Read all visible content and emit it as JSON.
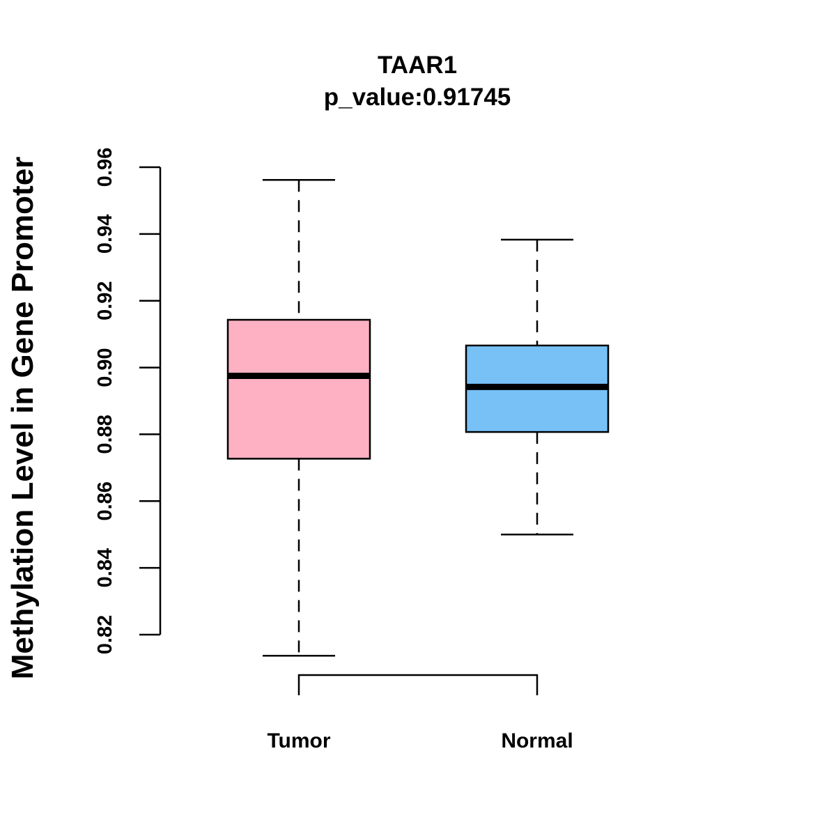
{
  "chart_data": {
    "type": "boxplot",
    "title": "TAAR1",
    "subtitle": "p_value:0.91745",
    "xlabel": "",
    "ylabel": "Methylation Level in Gene Promoter",
    "ylim": [
      0.82,
      0.96
    ],
    "yticks": [
      0.82,
      0.84,
      0.86,
      0.88,
      0.9,
      0.92,
      0.94,
      0.96
    ],
    "ytick_labels": [
      "0.82",
      "0.84",
      "0.86",
      "0.88",
      "0.90",
      "0.92",
      "0.94",
      "0.96"
    ],
    "categories": [
      "Tumor",
      "Normal"
    ],
    "series": [
      {
        "name": "Tumor",
        "min": 0.8137,
        "q1": 0.8727,
        "median": 0.8975,
        "q3": 0.9143,
        "max": 0.9562,
        "color": "#FDB1C3"
      },
      {
        "name": "Normal",
        "min": 0.85,
        "q1": 0.8807,
        "median": 0.8942,
        "q3": 0.9066,
        "max": 0.9383,
        "color": "#77C1F7"
      }
    ],
    "bracket": true,
    "grid": false,
    "legend": "none"
  }
}
